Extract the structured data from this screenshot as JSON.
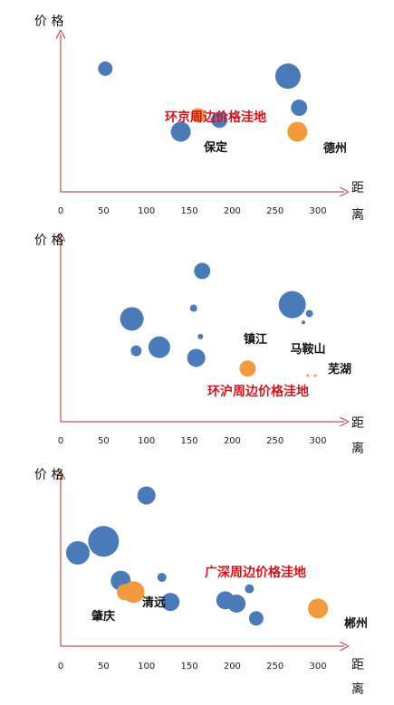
{
  "colors": {
    "blue": "#4a7ab8",
    "orange": "#f39a3e",
    "axis": "#c0504d",
    "title": "#d0141c"
  },
  "chart_data": [
    {
      "type": "scatter",
      "title": "环京周边价格洼地",
      "xlabel": "距离",
      "ylabel": "价格",
      "xlim": [
        0,
        320
      ],
      "xticks": [
        0,
        50,
        100,
        150,
        200,
        250,
        300
      ],
      "ylim": [
        0,
        100
      ],
      "grid": false,
      "series": [
        {
          "color": "blue",
          "points": [
            {
              "x": 52,
              "y": 82,
              "size": 8
            },
            {
              "x": 140,
              "y": 40,
              "size": 11
            },
            {
              "x": 185,
              "y": 48,
              "size": 9
            },
            {
              "x": 265,
              "y": 77,
              "size": 14
            },
            {
              "x": 278,
              "y": 56,
              "size": 9
            }
          ]
        },
        {
          "color": "orange",
          "points": [
            {
              "x": 160,
              "y": 51,
              "size": 8,
              "label": "保定"
            },
            {
              "x": 276,
              "y": 40,
              "size": 11,
              "label": "德州"
            }
          ]
        }
      ]
    },
    {
      "type": "scatter",
      "title": "环沪周边价格洼地",
      "xlabel": "距离",
      "ylabel": "价格",
      "xlim": [
        0,
        320
      ],
      "xticks": [
        0,
        50,
        100,
        150,
        200,
        250,
        300
      ],
      "ylim": [
        0,
        100
      ],
      "grid": false,
      "series": [
        {
          "color": "blue",
          "points": [
            {
              "x": 165,
              "y": 85,
              "size": 9
            },
            {
              "x": 155,
              "y": 64,
              "size": 4
            },
            {
              "x": 83,
              "y": 58,
              "size": 13
            },
            {
              "x": 163,
              "y": 48,
              "size": 3
            },
            {
              "x": 88,
              "y": 40,
              "size": 6
            },
            {
              "x": 115,
              "y": 42,
              "size": 12
            },
            {
              "x": 158,
              "y": 36,
              "size": 10
            },
            {
              "x": 270,
              "y": 66,
              "size": 15
            },
            {
              "x": 290,
              "y": 61,
              "size": 4
            },
            {
              "x": 283,
              "y": 56,
              "size": 2
            }
          ]
        },
        {
          "color": "orange",
          "points": [
            {
              "x": 218,
              "y": 30,
              "size": 9,
              "label": "镇江"
            },
            {
              "x": 288,
              "y": 26,
              "size": 1.5,
              "label": "马鞍山"
            },
            {
              "x": 297,
              "y": 26,
              "size": 1.5,
              "label": "芜湖"
            }
          ]
        }
      ]
    },
    {
      "type": "scatter",
      "title": "广深周边价格洼地",
      "xlabel": "距离",
      "ylabel": "价格",
      "xlim": [
        0,
        320
      ],
      "xticks": [
        0,
        50,
        100,
        150,
        200,
        250,
        300
      ],
      "ylim": [
        0,
        100
      ],
      "grid": false,
      "series": [
        {
          "color": "blue",
          "points": [
            {
              "x": 100,
              "y": 92,
              "size": 10
            },
            {
              "x": 50,
              "y": 64,
              "size": 17
            },
            {
              "x": 20,
              "y": 57,
              "size": 13
            },
            {
              "x": 70,
              "y": 40,
              "size": 11
            },
            {
              "x": 118,
              "y": 42,
              "size": 5
            },
            {
              "x": 128,
              "y": 27,
              "size": 10
            },
            {
              "x": 192,
              "y": 28,
              "size": 10
            },
            {
              "x": 205,
              "y": 26,
              "size": 10
            },
            {
              "x": 220,
              "y": 35,
              "size": 5
            },
            {
              "x": 228,
              "y": 17,
              "size": 8
            }
          ]
        },
        {
          "color": "orange",
          "points": [
            {
              "x": 75,
              "y": 33,
              "size": 9,
              "label": "肇庆"
            },
            {
              "x": 85,
              "y": 33,
              "size": 12,
              "label": "清远"
            },
            {
              "x": 300,
              "y": 23,
              "size": 11,
              "label": "郴州"
            }
          ]
        }
      ]
    }
  ]
}
